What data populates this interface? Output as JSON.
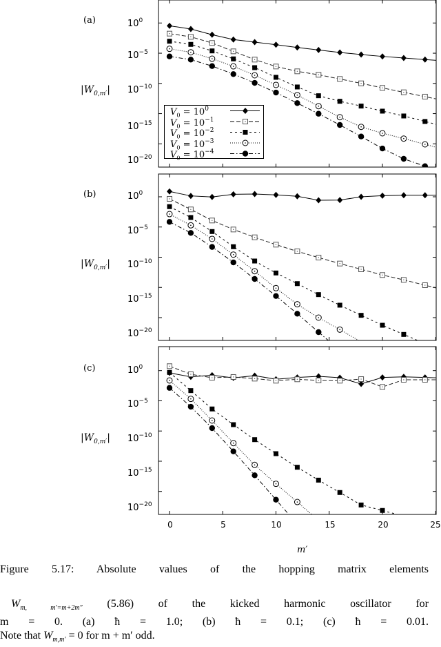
{
  "figure": {
    "panels": [
      {
        "tag": "(a)",
        "ylabel": "|W",
        "ylabel_sub": "0,m′",
        "ylabel_end": "|"
      },
      {
        "tag": "(b)",
        "ylabel": "|W",
        "ylabel_sub": "0,m′",
        "ylabel_end": "|"
      },
      {
        "tag": "(c)",
        "ylabel": "|W",
        "ylabel_sub": "0,m′",
        "ylabel_end": "|"
      }
    ],
    "yticks": [
      {
        "base": "10",
        "exp": "0"
      },
      {
        "base": "10",
        "exp": "−5"
      },
      {
        "base": "10",
        "exp": "−10"
      },
      {
        "base": "10",
        "exp": "−15"
      },
      {
        "base": "10",
        "exp": "−20"
      }
    ],
    "xticks": [
      "0",
      "5",
      "10",
      "15",
      "20",
      "25"
    ],
    "xlabel": "m′",
    "legend": [
      {
        "label": "V",
        "sub": "0",
        "eq": " = 10",
        "exp": "0"
      },
      {
        "label": "V",
        "sub": "0",
        "eq": " = 10",
        "exp": "−1"
      },
      {
        "label": "V",
        "sub": "0",
        "eq": " = 10",
        "exp": "−2"
      },
      {
        "label": "V",
        "sub": "0",
        "eq": " = 10",
        "exp": "−3"
      },
      {
        "label": "V",
        "sub": "0",
        "eq": " = 10",
        "exp": "−4"
      }
    ]
  },
  "caption": {
    "line1": "Figure 5.17: Absolute values of the hopping matrix elements",
    "line2_math": "W",
    "line2_sub": "m, m′=m+2m″",
    "line2_rest": "(5.86) of the kicked harmonic oscillator for",
    "line3": "m = 0. (a) ħ = 1.0; (b) ħ = 0.1; (c) ħ = 0.01.",
    "line4_pre": "Note that ",
    "line4_math": "W",
    "line4_sub": "m,m′",
    "line4_post": " = 0 for m + m′ odd."
  },
  "chart_data": [
    {
      "type": "line",
      "title": "(a) ħ = 1.0",
      "xlabel": "m′",
      "ylabel": "|W_{0,m′}|",
      "yscale": "log10",
      "xlim": [
        -1,
        25
      ],
      "ylim_log10": [
        -23.9,
        3.8
      ],
      "grid": false,
      "legend_position": "lower left",
      "x": [
        0,
        2,
        4,
        6,
        8,
        10,
        12,
        14,
        16,
        18,
        20,
        22,
        24
      ],
      "series": [
        {
          "name": "V0 = 10^0",
          "marker": "diamond-filled",
          "dash": "solid",
          "log10_values": [
            -0.46,
            -1.0,
            -1.94,
            -2.74,
            -3.17,
            -3.59,
            -4.05,
            -4.46,
            -4.88,
            -5.22,
            -5.53,
            -5.79,
            -6.05
          ]
        },
        {
          "name": "V0 = 10^-1",
          "marker": "square-open",
          "dash": "long-dash",
          "log10_values": [
            -1.76,
            -2.29,
            -3.31,
            -4.69,
            -6.06,
            -7.2,
            -8.0,
            -8.57,
            -9.26,
            -9.99,
            -10.74,
            -11.47,
            -12.19
          ]
        },
        {
          "name": "V0 = 10^-2",
          "marker": "square-filled",
          "dash": "short-dash",
          "log10_values": [
            -3.02,
            -3.54,
            -4.62,
            -5.94,
            -7.39,
            -8.99,
            -10.59,
            -12.04,
            -12.96,
            -13.75,
            -14.59,
            -15.39,
            -16.3
          ]
        },
        {
          "name": "V0 = 10^-3",
          "marker": "circle-open",
          "dash": "dotted",
          "log10_values": [
            -4.27,
            -4.85,
            -5.91,
            -7.17,
            -8.65,
            -10.25,
            -11.93,
            -13.76,
            -15.59,
            -17.19,
            -18.25,
            -19.13,
            -20.08
          ]
        },
        {
          "name": "V0 = 10^-4",
          "marker": "circle-filled",
          "dash": "dash-dot",
          "log10_values": [
            -5.53,
            -6.06,
            -7.13,
            -8.46,
            -9.91,
            -11.51,
            -13.26,
            -15.02,
            -16.88,
            -18.79,
            -20.77,
            -22.48,
            -23.7
          ]
        }
      ]
    },
    {
      "type": "line",
      "title": "(b) ħ = 0.1",
      "xlabel": "m′",
      "ylabel": "|W_{0,m′}|",
      "yscale": "log10",
      "xlim": [
        -1,
        25
      ],
      "ylim_log10": [
        -23.8,
        3.9
      ],
      "grid": false,
      "x": [
        0,
        2,
        4,
        6,
        8,
        10,
        12,
        14,
        16,
        18,
        20,
        22,
        24
      ],
      "series": [
        {
          "name": "V0 = 10^0",
          "marker": "diamond-filled",
          "dash": "solid",
          "log10_values": [
            0.88,
            0.15,
            -0.03,
            0.42,
            0.46,
            0.31,
            0.08,
            -0.57,
            -0.54,
            0.0,
            0.19,
            0.26,
            0.26
          ]
        },
        {
          "name": "V0 = 10^-1",
          "marker": "square-open",
          "dash": "long-dash",
          "log10_values": [
            -0.34,
            -2.09,
            -3.92,
            -5.41,
            -6.71,
            -7.92,
            -9.03,
            -10.06,
            -11.05,
            -12.0,
            -12.95,
            -13.75,
            -14.63
          ]
        },
        {
          "name": "V0 = 10^-2",
          "marker": "square-filled",
          "dash": "short-dash",
          "log10_values": [
            -1.63,
            -3.43,
            -5.75,
            -8.26,
            -10.63,
            -12.61,
            -14.37,
            -16.19,
            -17.94,
            -19.62,
            -21.26,
            -22.78,
            -24.3
          ]
        },
        {
          "name": "V0 = 10^-3",
          "marker": "circle-open",
          "dash": "dotted",
          "log10_values": [
            -2.86,
            -4.72,
            -6.97,
            -9.57,
            -12.31,
            -15.12,
            -17.79,
            -20.0,
            -21.98,
            -24.0
          ]
        },
        {
          "name": "V0 = 10^-4",
          "marker": "circle-filled",
          "dash": "dash-dot",
          "log10_values": [
            -4.15,
            -5.98,
            -8.3,
            -10.86,
            -13.6,
            -16.42,
            -19.35,
            -22.4,
            -25.4
          ]
        }
      ]
    },
    {
      "type": "line",
      "title": "(c) ħ = 0.01",
      "xlabel": "m′",
      "ylabel": "|W_{0,m′}|",
      "yscale": "log10",
      "xlim": [
        -1,
        25
      ],
      "ylim_log10": [
        -23.8,
        4.0
      ],
      "grid": false,
      "x": [
        0,
        2,
        4,
        6,
        8,
        10,
        12,
        14,
        16,
        18,
        20,
        22,
        24
      ],
      "series": [
        {
          "name": "V0 = 10^0",
          "marker": "diamond-filled",
          "dash": "solid",
          "log10_values": [
            -0.38,
            -1.03,
            -0.76,
            -1.21,
            -0.83,
            -1.44,
            -1.14,
            -0.95,
            -1.18,
            -2.21,
            -1.14,
            -1.03,
            -1.14
          ]
        },
        {
          "name": "V0 = 10^-1",
          "marker": "square-open",
          "dash": "long-dash",
          "log10_values": [
            0.73,
            -0.61,
            -1.18,
            -1.06,
            -1.33,
            -1.67,
            -1.44,
            -1.63,
            -1.67,
            -1.41,
            -2.7,
            -1.52,
            -1.52
          ]
        },
        {
          "name": "V0 = 10^-2",
          "marker": "square-filled",
          "dash": "short-dash",
          "log10_values": [
            -0.3,
            -3.31,
            -6.35,
            -8.95,
            -11.43,
            -13.75,
            -16.0,
            -18.13,
            -20.18,
            -22.24,
            -23.15,
            -24.1
          ]
        },
        {
          "name": "V0 = 10^-3",
          "marker": "circle-open",
          "dash": "dotted",
          "log10_values": [
            -1.63,
            -4.68,
            -8.26,
            -12.0,
            -15.61,
            -18.74,
            -21.75,
            -24.8
          ]
        },
        {
          "name": "V0 = 10^-4",
          "marker": "circle-filled",
          "dash": "dash-dot",
          "log10_values": [
            -2.86,
            -5.98,
            -9.52,
            -13.37,
            -17.33,
            -21.37,
            -25.4
          ]
        }
      ]
    }
  ]
}
